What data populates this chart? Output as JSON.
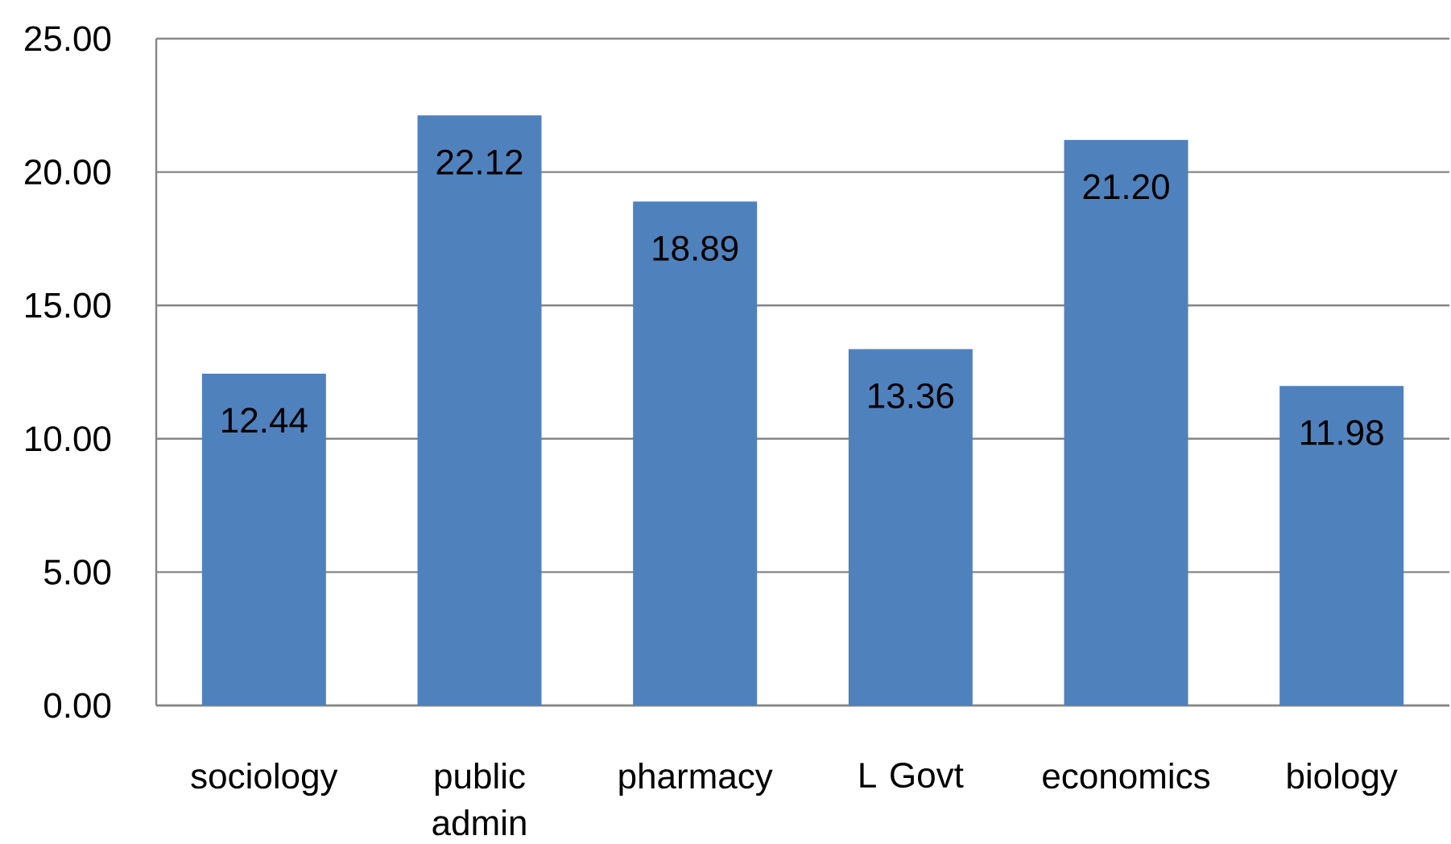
{
  "chart_data": {
    "type": "bar",
    "categories": [
      "sociology",
      "public admin",
      "pharmacy",
      "L Govt",
      "economics",
      "biology"
    ],
    "values": [
      12.44,
      22.12,
      18.89,
      13.36,
      21.2,
      11.98
    ],
    "value_labels": [
      "12.44",
      "22.12",
      "18.89",
      "13.36",
      "21.20",
      "11.98"
    ],
    "color": "#4f81bd",
    "ylim": [
      0,
      25
    ],
    "yticks": [
      {
        "value": 0,
        "label": "0.00"
      },
      {
        "value": 5,
        "label": "5.00"
      },
      {
        "value": 10,
        "label": "10.00"
      },
      {
        "value": 15,
        "label": "15.00"
      },
      {
        "value": 20,
        "label": "20.00"
      },
      {
        "value": 25,
        "label": "25.00"
      }
    ],
    "grid": "y"
  }
}
